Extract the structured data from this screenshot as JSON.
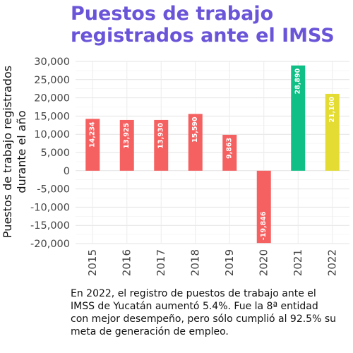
{
  "title_lines": [
    "Puestos de trabajo",
    "registrados ante el IMSS"
  ],
  "caption": "En 2022, el registro de puestos de trabajo ante el IMSS de Yucatán aumentó 5.4%. Fue la 8ª entidad con mejor desempeño, pero sólo cumplió al 92.5% su meta de generación de empleo.",
  "colors": {
    "title": "#6a55d8",
    "bar_default": "#f56161",
    "grid": "#e6e6e6"
  },
  "chart_data": {
    "type": "bar",
    "categories": [
      "2015",
      "2016",
      "2017",
      "2018",
      "2019",
      "2020",
      "2021",
      "2022"
    ],
    "values": [
      14234,
      13925,
      13930,
      15590,
      9863,
      -19846,
      28890,
      21100
    ],
    "data_labels": [
      "14,234",
      "13,925",
      "13,930",
      "15,590",
      "9,863",
      "-19,846",
      "28,890",
      "21,100"
    ],
    "bar_colors": [
      "#f56161",
      "#f56161",
      "#f56161",
      "#f56161",
      "#f56161",
      "#f56161",
      "#0fbf85",
      "#e4dc32"
    ],
    "ylabel_lines": [
      "Puestos de trabajo registrados",
      "durante el año"
    ],
    "xlabel": "",
    "yticks": [
      -20000,
      -15000,
      -10000,
      -5000,
      0,
      5000,
      10000,
      15000,
      20000,
      25000,
      30000
    ],
    "ytick_labels": [
      "-20,000",
      "-15,000",
      "-10,000",
      "-5,000",
      "0",
      "5,000",
      "10,000",
      "15,000",
      "20,000",
      "25,000",
      "30,000"
    ],
    "ylim": [
      -20000,
      30000
    ],
    "grid": true
  }
}
